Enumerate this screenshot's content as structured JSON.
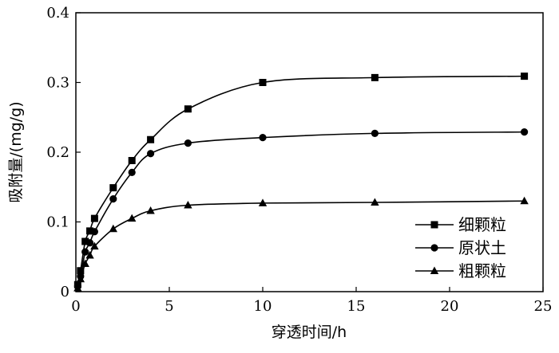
{
  "chart_data": {
    "type": "line",
    "title": "",
    "xlabel": "穿透时间/h",
    "ylabel": "吸附量/(mg/g)",
    "xlim": [
      0,
      25
    ],
    "ylim": [
      0,
      0.4
    ],
    "xticks": [
      "0",
      "5",
      "10",
      "15",
      "20",
      "25"
    ],
    "yticks": [
      "0",
      "0.1",
      "0.2",
      "0.3",
      "0.4"
    ],
    "grid": false,
    "legend_position": "bottom-right",
    "series": [
      {
        "name": "细颗粒",
        "marker": "square",
        "x": [
          0.1,
          0.25,
          0.5,
          0.75,
          1,
          2,
          3,
          4,
          6,
          10,
          16,
          24
        ],
        "y": [
          0.01,
          0.03,
          0.072,
          0.087,
          0.105,
          0.149,
          0.188,
          0.218,
          0.262,
          0.3,
          0.307,
          0.309
        ]
      },
      {
        "name": "原状土",
        "marker": "circle",
        "x": [
          0.1,
          0.25,
          0.5,
          0.75,
          1,
          2,
          3,
          4,
          6,
          10,
          16,
          24
        ],
        "y": [
          0.008,
          0.022,
          0.057,
          0.07,
          0.086,
          0.133,
          0.171,
          0.198,
          0.213,
          0.221,
          0.227,
          0.229
        ]
      },
      {
        "name": "粗颗粒",
        "marker": "triangle",
        "x": [
          0.1,
          0.25,
          0.5,
          0.75,
          1,
          2,
          3,
          4,
          6,
          10,
          16,
          24
        ],
        "y": [
          0.005,
          0.018,
          0.04,
          0.052,
          0.065,
          0.09,
          0.105,
          0.116,
          0.124,
          0.127,
          0.128,
          0.13
        ]
      }
    ]
  }
}
